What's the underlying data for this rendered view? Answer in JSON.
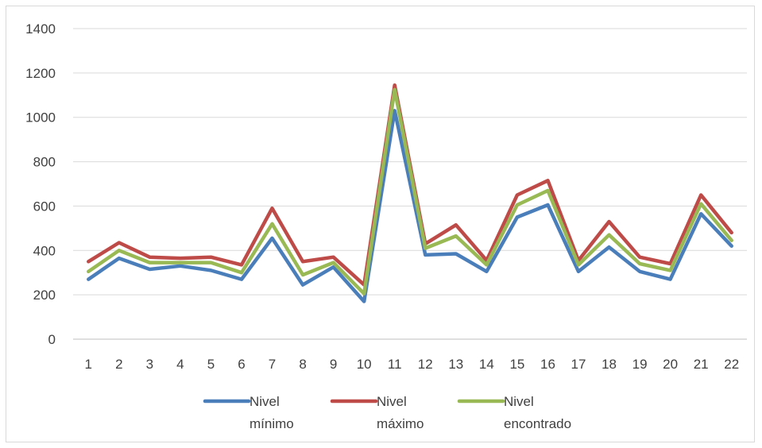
{
  "chart_data": {
    "type": "line",
    "title": "",
    "xlabel": "",
    "ylabel": "",
    "x": [
      1,
      2,
      3,
      4,
      5,
      6,
      7,
      8,
      9,
      10,
      11,
      12,
      13,
      14,
      15,
      16,
      17,
      18,
      19,
      20,
      21,
      22
    ],
    "ylim": [
      0,
      1400
    ],
    "yticks": [
      0,
      200,
      400,
      600,
      800,
      1000,
      1200,
      1400
    ],
    "grid": true,
    "legend_position": "bottom",
    "series": [
      {
        "name_line1": "Nivel",
        "name_line2": "mínimo",
        "color": "#4a7ebb",
        "values": [
          270,
          365,
          315,
          330,
          310,
          270,
          455,
          245,
          325,
          170,
          1030,
          380,
          385,
          305,
          550,
          605,
          305,
          415,
          305,
          270,
          565,
          420
        ]
      },
      {
        "name_line1": "Nivel",
        "name_line2": "máximo",
        "color": "#be4b48",
        "values": [
          350,
          435,
          370,
          365,
          370,
          335,
          590,
          350,
          370,
          245,
          1145,
          430,
          515,
          355,
          650,
          715,
          355,
          530,
          370,
          340,
          650,
          480
        ]
      },
      {
        "name_line1": "Nivel",
        "name_line2": "encontrado",
        "color": "#98b954",
        "values": [
          305,
          400,
          345,
          345,
          345,
          300,
          520,
          290,
          345,
          205,
          1125,
          410,
          465,
          335,
          605,
          670,
          335,
          470,
          340,
          310,
          610,
          445
        ]
      }
    ]
  }
}
